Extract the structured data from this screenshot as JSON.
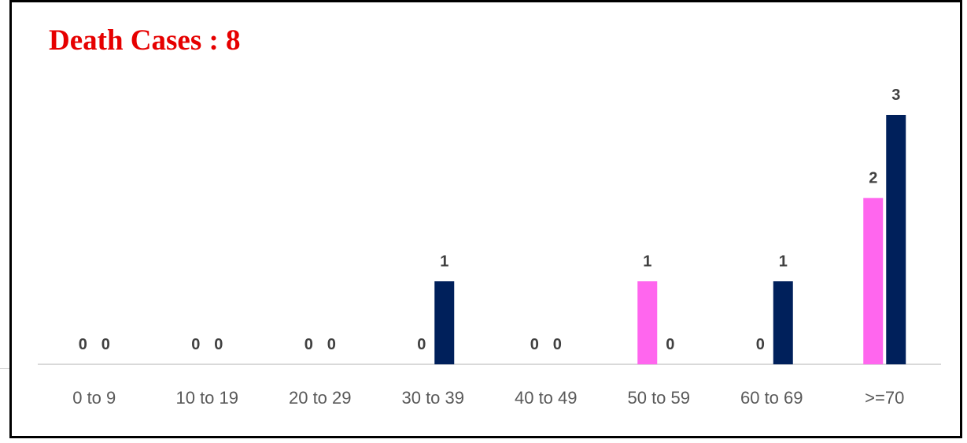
{
  "header": {
    "title": "Death Cases : 8"
  },
  "colors": {
    "female": "#ff66ee",
    "male": "#00205b",
    "title": "#e60000",
    "axis": "#d9d9d9"
  },
  "chart_data": {
    "type": "bar",
    "title": "Death Cases : 8",
    "categories": [
      "0 to 9",
      "10 to 19",
      "20 to 29",
      "30 to 39",
      "40 to 49",
      "50 to 59",
      "60 to 69",
      ">=70"
    ],
    "series": [
      {
        "values": [
          0,
          0,
          0,
          0,
          0,
          1,
          0,
          2
        ],
        "color": "#ff66ee"
      },
      {
        "values": [
          0,
          0,
          0,
          1,
          0,
          0,
          1,
          3
        ],
        "color": "#00205b"
      }
    ],
    "ylim": [
      0,
      3
    ],
    "grid": false,
    "legend": "none",
    "data_labels": true
  }
}
